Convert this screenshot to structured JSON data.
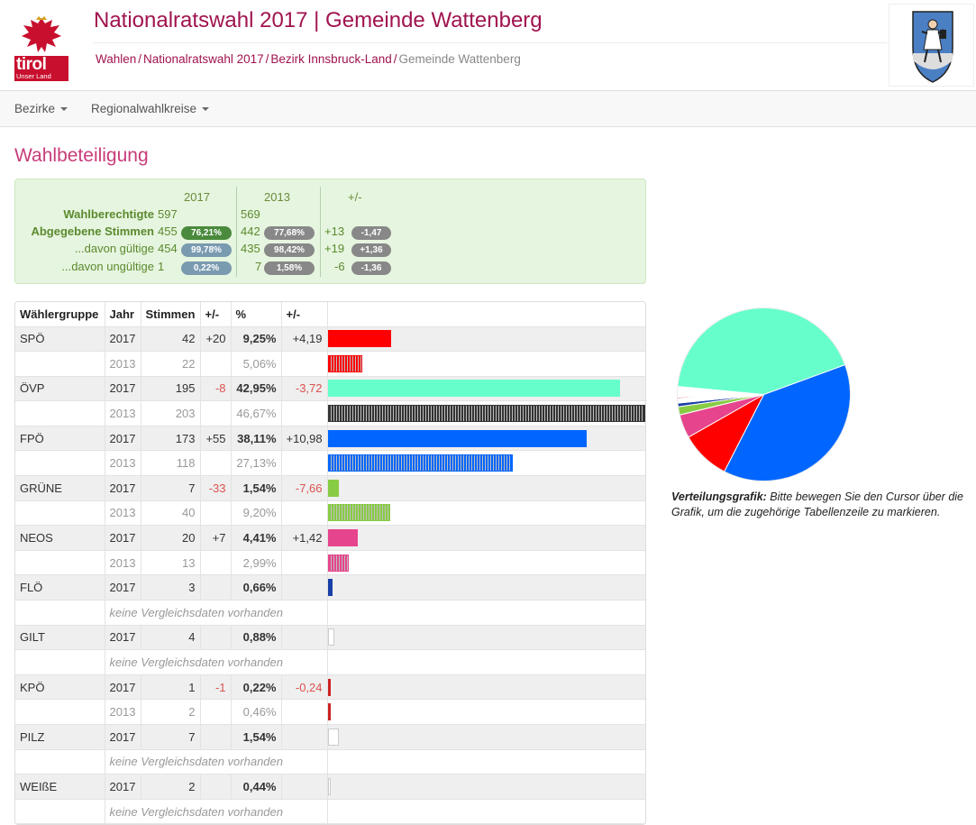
{
  "header": {
    "title": "Nationalratswahl 2017 | Gemeinde Wattenberg",
    "logo_word": "tirol",
    "logo_sub": "Unser Land",
    "breadcrumb": [
      "Wahlen",
      "Nationalratswahl 2017",
      "Bezirk Innsbruck-Land",
      "Gemeinde Wattenberg"
    ]
  },
  "nav": {
    "items": [
      "Bezirke",
      "Regionalwahlkreise"
    ]
  },
  "turnout": {
    "title": "Wahlbeteiligung",
    "headers": [
      "2017",
      "2013",
      "+/-"
    ],
    "rows": [
      {
        "label": "Wahlberechtigte",
        "v2017": "597",
        "p2017": "",
        "v2013": "569",
        "p2013": "",
        "diff": "",
        "pdiff": ""
      },
      {
        "label": "Abgegebene Stimmen",
        "v2017": "455",
        "p2017": "76,21%",
        "v2013": "442",
        "p2013": "77,68%",
        "diff": "+13",
        "pdiff": "-1,47"
      },
      {
        "label": "...davon gültige",
        "v2017": "454",
        "p2017": "99,78%",
        "v2013": "435",
        "p2013": "98,42%",
        "diff": "+19",
        "pdiff": "+1,36"
      },
      {
        "label": "...davon ungültige",
        "v2017": "1",
        "p2017": "0,22%",
        "v2013": "7",
        "p2013": "1,58%",
        "diff": "-6",
        "pdiff": "-1,36"
      }
    ]
  },
  "results": {
    "headers": [
      "Wählergruppe",
      "Jahr",
      "Stimmen",
      "+/-",
      "%",
      "+/-"
    ],
    "no_data_label": "keine Vergleichsdaten vorhanden",
    "parties": [
      {
        "name": "SPÖ",
        "color": "#ff0000",
        "y2017": {
          "year": "2017",
          "votes": "42",
          "diff": "+20",
          "pct": "9,25%",
          "pdiff": "+4,19"
        },
        "y2013": {
          "year": "2013",
          "votes": "22",
          "pct": "5,06%"
        }
      },
      {
        "name": "ÖVP",
        "color": "#66ffcc",
        "y2017": {
          "year": "2017",
          "votes": "195",
          "diff": "-8",
          "pct": "42,95%",
          "pdiff": "-3,72"
        },
        "y2013": {
          "year": "2013",
          "votes": "203",
          "pct": "46,67%"
        }
      },
      {
        "name": "FPÖ",
        "color": "#0066ff",
        "y2017": {
          "year": "2017",
          "votes": "173",
          "diff": "+55",
          "pct": "38,11%",
          "pdiff": "+10,98"
        },
        "y2013": {
          "year": "2013",
          "votes": "118",
          "pct": "27,13%"
        }
      },
      {
        "name": "GRÜNE",
        "color": "#88cc44",
        "y2017": {
          "year": "2017",
          "votes": "7",
          "diff": "-33",
          "pct": "1,54%",
          "pdiff": "-7,66"
        },
        "y2013": {
          "year": "2013",
          "votes": "40",
          "pct": "9,20%"
        }
      },
      {
        "name": "NEOS",
        "color": "#e6448c",
        "y2017": {
          "year": "2017",
          "votes": "20",
          "diff": "+7",
          "pct": "4,41%",
          "pdiff": "+1,42"
        },
        "y2013": {
          "year": "2013",
          "votes": "13",
          "pct": "2,99%"
        }
      },
      {
        "name": "FLÖ",
        "color": "#1a3fa8",
        "y2017": {
          "year": "2017",
          "votes": "3",
          "diff": "",
          "pct": "0,66%",
          "pdiff": ""
        },
        "y2013": null
      },
      {
        "name": "GILT",
        "color": "#ffffff",
        "y2017": {
          "year": "2017",
          "votes": "4",
          "diff": "",
          "pct": "0,88%",
          "pdiff": ""
        },
        "y2013": null
      },
      {
        "name": "KPÖ",
        "color": "#cc2222",
        "y2017": {
          "year": "2017",
          "votes": "1",
          "diff": "-1",
          "pct": "0,22%",
          "pdiff": "-0,24"
        },
        "y2013": {
          "year": "2013",
          "votes": "2",
          "pct": "0,46%"
        }
      },
      {
        "name": "PILZ",
        "color": "#ffffff",
        "y2017": {
          "year": "2017",
          "votes": "7",
          "diff": "",
          "pct": "1,54%",
          "pdiff": ""
        },
        "y2013": null
      },
      {
        "name": "WEIßE",
        "color": "#ffffff",
        "y2017": {
          "year": "2017",
          "votes": "2",
          "diff": "",
          "pct": "0,44%",
          "pdiff": ""
        },
        "y2013": null
      }
    ]
  },
  "chart_data": {
    "type": "pie",
    "categories": [
      "FPÖ",
      "SPÖ",
      "NEOS",
      "GRÜNE",
      "FLÖ",
      "GILT",
      "KPÖ",
      "PILZ",
      "WEIßE",
      "ÖVP"
    ],
    "values": [
      38.11,
      9.25,
      4.41,
      1.54,
      0.66,
      0.88,
      0.22,
      1.54,
      0.44,
      42.95
    ],
    "colors": [
      "#0066ff",
      "#ff0000",
      "#e6448c",
      "#88cc44",
      "#1a3fa8",
      "#ffffff",
      "#cc2222",
      "#ffffff",
      "#ffffff",
      "#66ffcc"
    ]
  },
  "pie_caption": {
    "bold": "Verteilungsgrafik:",
    "text": " Bitte bewegen Sie den Cursor über die Grafik, um die zugehörige Tabellenzeile zu markieren."
  }
}
